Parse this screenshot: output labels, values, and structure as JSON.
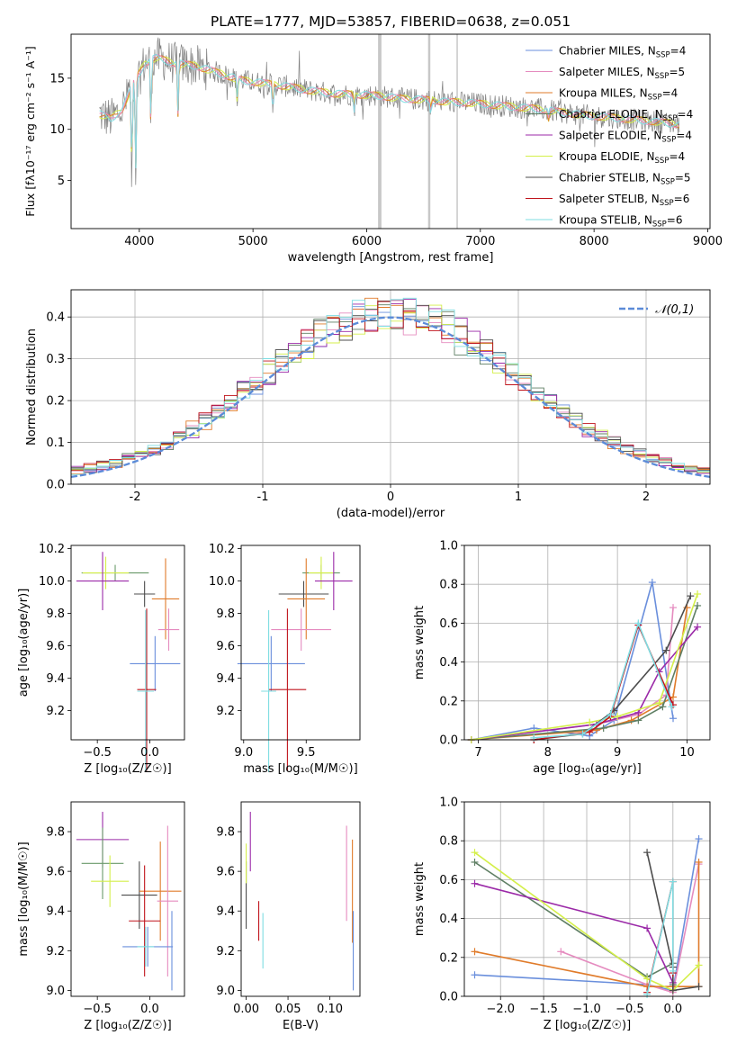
{
  "figure": {
    "title": "PLATE=1777, MJD=53857, FIBERID=0638, z=0.051",
    "legend_entries": [
      {
        "name": "Chabrier MILES",
        "nssp": "4",
        "color": "#6a8fdc"
      },
      {
        "name": "Salpeter MILES",
        "nssp": "5",
        "color": "#e58bbf"
      },
      {
        "name": "Kroupa MILES",
        "nssp": "4",
        "color": "#e07b2a"
      },
      {
        "name": "Chabrier ELODIE",
        "nssp": "4",
        "color": "#5f7f64"
      },
      {
        "name": "Salpeter ELODIE",
        "nssp": "4",
        "color": "#9b2aa8"
      },
      {
        "name": "Kroupa ELODIE",
        "nssp": "4",
        "color": "#d4ef4a"
      },
      {
        "name": "Chabrier STELIB",
        "nssp": "5",
        "color": "#4c4c4c"
      },
      {
        "name": "Salpeter STELIB",
        "nssp": "6",
        "color": "#c0141c"
      },
      {
        "name": "Kroupa STELIB",
        "nssp": "6",
        "color": "#7fdde2"
      }
    ]
  },
  "chart_data": [
    {
      "id": "spectrum",
      "type": "line",
      "xlabel": "wavelength [Angstrom, rest frame]",
      "ylabel": "Flux [fλ10⁻¹⁷ erg cm⁻² s⁻¹ A⁻¹]",
      "xlim": [
        3400,
        9020
      ],
      "ylim": [
        0.3,
        19.3
      ],
      "xticks": [
        4000,
        5000,
        6000,
        7000,
        8000,
        9000
      ],
      "yticks": [
        5,
        10,
        15
      ],
      "data_color": "#808080",
      "model_color": "#7fdde2",
      "continuum": [
        [
          3650,
          11.5
        ],
        [
          3750,
          11.0
        ],
        [
          3850,
          12.0
        ],
        [
          3950,
          14.5
        ],
        [
          4050,
          16.5
        ],
        [
          4150,
          17.0
        ],
        [
          4300,
          16.5
        ],
        [
          4500,
          16.2
        ],
        [
          4700,
          15.5
        ],
        [
          4900,
          14.8
        ],
        [
          5100,
          14.5
        ],
        [
          5300,
          14.2
        ],
        [
          5500,
          13.8
        ],
        [
          5700,
          13.5
        ],
        [
          5900,
          13.4
        ],
        [
          6100,
          13.3
        ],
        [
          6300,
          13.0
        ],
        [
          6500,
          12.9
        ],
        [
          6700,
          12.7
        ],
        [
          6900,
          12.6
        ],
        [
          7100,
          12.4
        ],
        [
          7300,
          12.2
        ],
        [
          7500,
          12.0
        ],
        [
          7700,
          11.7
        ],
        [
          7900,
          11.4
        ],
        [
          8100,
          11.2
        ],
        [
          8300,
          11.0
        ],
        [
          8500,
          10.8
        ],
        [
          8750,
          10.5
        ]
      ],
      "absorption": [
        [
          3934,
          4.0
        ],
        [
          3969,
          4.5
        ],
        [
          4102,
          9.5
        ],
        [
          4340,
          11.0
        ],
        [
          4861,
          12.5
        ],
        [
          5175,
          11.5
        ],
        [
          5890,
          11.8
        ],
        [
          6563,
          11.5
        ],
        [
          7600,
          11.0
        ]
      ],
      "gaps": [
        [
          6100,
          6130
        ],
        [
          6540,
          6560
        ],
        [
          6790,
          6800
        ]
      ]
    },
    {
      "id": "residuals",
      "type": "bar",
      "xlabel": "(data-model)/error",
      "ylabel": "Normed distribution",
      "xlim": [
        -2.5,
        2.5
      ],
      "ylim": [
        0,
        0.465
      ],
      "xticks": [
        -2,
        -1,
        0,
        1,
        2
      ],
      "yticks": [
        0.0,
        0.1,
        0.2,
        0.3,
        0.4
      ],
      "bin_width": 0.1,
      "legend_label": "𝒩(0,1)",
      "reference_color": "#5b8bd8",
      "reference": {
        "mean": 0,
        "sigma": 1
      }
    },
    {
      "id": "age-vs-Z",
      "type": "scatter",
      "xlabel": "Z [log₁₀(Z/Z☉)]",
      "ylabel": "age  [log₁₀(age/yr)]",
      "xlim": [
        -0.75,
        0.33
      ],
      "ylim": [
        9.02,
        10.22
      ],
      "xticks": [
        -0.5,
        0.0
      ],
      "xtick_labels": [
        "−0.5",
        "0.0"
      ],
      "yticks": [
        9.2,
        9.4,
        9.6,
        9.8,
        10.0,
        10.2
      ],
      "errorbars": [
        {
          "x": -0.33,
          "xerr": 0.32,
          "y": 10.05,
          "yerr": 0.05,
          "color": "#6a9a6a"
        },
        {
          "x": -0.42,
          "xerr": 0.22,
          "y": 10.05,
          "yerr": 0.1,
          "color": "#d4ef4a"
        },
        {
          "x": -0.45,
          "xerr": 0.25,
          "y": 10.0,
          "yerr": 0.18,
          "color": "#9b2aa8"
        },
        {
          "x": -0.05,
          "xerr": 0.1,
          "y": 9.92,
          "yerr": 0.08,
          "color": "#4c4c4c"
        },
        {
          "x": 0.15,
          "xerr": 0.13,
          "y": 9.89,
          "yerr": 0.25,
          "color": "#e07b2a"
        },
        {
          "x": 0.18,
          "xerr": 0.1,
          "y": 9.7,
          "yerr": 0.13,
          "color": "#e58bbf"
        },
        {
          "x": 0.05,
          "xerr": 0.24,
          "y": 9.49,
          "yerr": 0.17,
          "color": "#6a8fdc"
        },
        {
          "x": -0.03,
          "xerr": 0.09,
          "y": 9.33,
          "yerr": 0.5,
          "color": "#c0141c"
        },
        {
          "x": -0.04,
          "xerr": 0.08,
          "y": 9.32,
          "yerr": 0.5,
          "color": "#7fdde2"
        }
      ]
    },
    {
      "id": "age-vs-mass",
      "type": "scatter",
      "xlabel": "mass [log₁₀(M/M☉)]",
      "ylabel": "",
      "xlim": [
        8.98,
        9.93
      ],
      "ylim": [
        9.02,
        10.22
      ],
      "xticks": [
        9.0,
        9.5
      ],
      "xtick_labels": [
        "9.0",
        "9.5"
      ],
      "yticks": [
        9.2,
        9.4,
        9.6,
        9.8,
        10.0,
        10.2
      ],
      "errorbars": [
        {
          "x": 9.62,
          "xerr": 0.15,
          "y": 10.05,
          "yerr": 0.05,
          "color": "#6a9a6a"
        },
        {
          "x": 9.62,
          "xerr": 0.1,
          "y": 10.05,
          "yerr": 0.1,
          "color": "#d4ef4a"
        },
        {
          "x": 9.72,
          "xerr": 0.15,
          "y": 10.0,
          "yerr": 0.18,
          "color": "#9b2aa8"
        },
        {
          "x": 9.48,
          "xerr": 0.2,
          "y": 9.92,
          "yerr": 0.08,
          "color": "#4c4c4c"
        },
        {
          "x": 9.5,
          "xerr": 0.15,
          "y": 9.89,
          "yerr": 0.25,
          "color": "#e07b2a"
        },
        {
          "x": 9.46,
          "xerr": 0.24,
          "y": 9.7,
          "yerr": 0.13,
          "color": "#e58bbf"
        },
        {
          "x": 9.22,
          "xerr": 0.27,
          "y": 9.49,
          "yerr": 0.17,
          "color": "#6a8fdc"
        },
        {
          "x": 9.35,
          "xerr": 0.15,
          "y": 9.33,
          "yerr": 0.5,
          "color": "#c0141c"
        },
        {
          "x": 9.2,
          "xerr": 0.06,
          "y": 9.32,
          "yerr": 0.5,
          "color": "#7fdde2"
        }
      ]
    },
    {
      "id": "weight-vs-age",
      "type": "line",
      "xlabel": "age  [log₁₀(age/yr)]",
      "ylabel": "mass weight",
      "xlim": [
        6.8,
        10.33
      ],
      "ylim": [
        0.0,
        1.0
      ],
      "xticks": [
        7,
        8,
        9,
        10
      ],
      "yticks": [
        0.0,
        0.2,
        0.4,
        0.6,
        0.8,
        1.0
      ],
      "series": [
        {
          "color": "#6a8fdc",
          "points": [
            [
              6.9,
              0.0
            ],
            [
              7.8,
              0.06
            ],
            [
              8.6,
              0.02
            ],
            [
              8.95,
              0.1
            ],
            [
              9.5,
              0.81
            ],
            [
              9.8,
              0.11
            ]
          ]
        },
        {
          "color": "#e58bbf",
          "points": [
            [
              6.9,
              0.0
            ],
            [
              8.7,
              0.08
            ],
            [
              9.3,
              0.13
            ],
            [
              9.7,
              0.23
            ],
            [
              9.8,
              0.68
            ]
          ]
        },
        {
          "color": "#e07b2a",
          "points": [
            [
              6.9,
              0.0
            ],
            [
              8.7,
              0.05
            ],
            [
              9.2,
              0.1
            ],
            [
              9.8,
              0.22
            ],
            [
              10.0,
              0.68
            ]
          ]
        },
        {
          "color": "#5f7f64",
          "points": [
            [
              6.9,
              0.0
            ],
            [
              8.8,
              0.06
            ],
            [
              9.3,
              0.1
            ],
            [
              9.65,
              0.17
            ],
            [
              10.15,
              0.69
            ]
          ]
        },
        {
          "color": "#9b2aa8",
          "points": [
            [
              6.9,
              0.0
            ],
            [
              8.7,
              0.08
            ],
            [
              9.3,
              0.14
            ],
            [
              9.6,
              0.35
            ],
            [
              10.15,
              0.58
            ]
          ]
        },
        {
          "color": "#d4ef4a",
          "points": [
            [
              6.9,
              0.0
            ],
            [
              8.6,
              0.09
            ],
            [
              9.0,
              0.12
            ],
            [
              9.6,
              0.19
            ],
            [
              10.15,
              0.75
            ]
          ]
        },
        {
          "color": "#4c4c4c",
          "points": [
            [
              7.8,
              0.0
            ],
            [
              8.5,
              0.03
            ],
            [
              8.95,
              0.15
            ],
            [
              9.7,
              0.46
            ],
            [
              10.05,
              0.74
            ]
          ]
        },
        {
          "color": "#c0141c",
          "points": [
            [
              7.8,
              0.0
            ],
            [
              8.6,
              0.04
            ],
            [
              8.9,
              0.12
            ],
            [
              9.3,
              0.59
            ],
            [
              9.8,
              0.18
            ]
          ]
        },
        {
          "color": "#7fdde2",
          "points": [
            [
              7.8,
              0.01
            ],
            [
              8.5,
              0.03
            ],
            [
              8.9,
              0.13
            ],
            [
              9.3,
              0.6
            ],
            [
              9.78,
              0.17
            ]
          ]
        }
      ]
    },
    {
      "id": "mass-vs-Z",
      "type": "scatter",
      "xlabel": "Z [log₁₀(Z/Z☉)]",
      "ylabel": "mass [log₁₀(M/M☉)]",
      "xlim": [
        -0.75,
        0.33
      ],
      "ylim": [
        8.97,
        9.95
      ],
      "xticks": [
        -0.5,
        0.0
      ],
      "xtick_labels": [
        "−0.5",
        "0.0"
      ],
      "yticks": [
        9.0,
        9.2,
        9.4,
        9.6,
        9.8
      ],
      "errorbars": [
        {
          "x": -0.45,
          "xerr": 0.25,
          "y": 9.76,
          "yerr": 0.14,
          "color": "#9b2aa8"
        },
        {
          "x": -0.45,
          "xerr": 0.2,
          "y": 9.64,
          "yerr": 0.18,
          "color": "#6a9a6a"
        },
        {
          "x": -0.38,
          "xerr": 0.18,
          "y": 9.55,
          "yerr": 0.13,
          "color": "#d4ef4a"
        },
        {
          "x": -0.1,
          "xerr": 0.17,
          "y": 9.48,
          "yerr": 0.17,
          "color": "#4c4c4c"
        },
        {
          "x": 0.1,
          "xerr": 0.2,
          "y": 9.5,
          "yerr": 0.25,
          "color": "#e07b2a"
        },
        {
          "x": 0.17,
          "xerr": 0.1,
          "y": 9.45,
          "yerr": 0.38,
          "color": "#e58bbf"
        },
        {
          "x": -0.05,
          "xerr": 0.15,
          "y": 9.35,
          "yerr": 0.28,
          "color": "#c0141c"
        },
        {
          "x": -0.02,
          "xerr": 0.24,
          "y": 9.22,
          "yerr": 0.1,
          "color": "#6a8fdc"
        },
        {
          "x": -0.04,
          "xerr": 0.08,
          "y": 9.22,
          "yerr": 0.1,
          "color": "#7fdde2"
        },
        {
          "x": 0.21,
          "xerr": 0.0,
          "y": 9.2,
          "yerr": 0.2,
          "color": "#6a8fdc"
        }
      ]
    },
    {
      "id": "mass-vs-ebv",
      "type": "scatter",
      "xlabel": "E(B-V)",
      "ylabel": "",
      "xlim": [
        -0.006,
        0.136
      ],
      "ylim": [
        8.97,
        9.95
      ],
      "xticks": [
        0.0,
        0.05,
        0.1
      ],
      "xtick_labels": [
        "0.00",
        "0.05",
        "0.10"
      ],
      "yticks": [
        9.0,
        9.2,
        9.4,
        9.6,
        9.8
      ],
      "errorbars": [
        {
          "x": 0.0,
          "xerr": 0.0,
          "y": 9.48,
          "yerr": 0.17,
          "color": "#4c4c4c"
        },
        {
          "x": 0.0,
          "xerr": 0.0,
          "y": 9.64,
          "yerr": 0.1,
          "color": "#d4ef4a"
        },
        {
          "x": 0.005,
          "xerr": 0.0,
          "y": 9.75,
          "yerr": 0.15,
          "color": "#9b2aa8"
        },
        {
          "x": 0.015,
          "xerr": 0.0,
          "y": 9.35,
          "yerr": 0.1,
          "color": "#c0141c"
        },
        {
          "x": 0.02,
          "xerr": 0.0,
          "y": 9.25,
          "yerr": 0.14,
          "color": "#7fdde2"
        },
        {
          "x": 0.12,
          "xerr": 0.0,
          "y": 9.59,
          "yerr": 0.24,
          "color": "#e58bbf"
        },
        {
          "x": 0.127,
          "xerr": 0.0,
          "y": 9.5,
          "yerr": 0.26,
          "color": "#e07b2a"
        },
        {
          "x": 0.128,
          "xerr": 0.0,
          "y": 9.2,
          "yerr": 0.2,
          "color": "#6a8fdc"
        }
      ]
    },
    {
      "id": "weight-vs-Z",
      "type": "line",
      "xlabel": "Z [log₁₀(Z/Z☉)]",
      "ylabel": "mass weight",
      "xlim": [
        -2.42,
        0.43
      ],
      "ylim": [
        0.0,
        1.0
      ],
      "xticks": [
        -2.0,
        -1.5,
        -1.0,
        -0.5,
        0.0
      ],
      "xtick_labels": [
        "−2.0",
        "−1.5",
        "−1.0",
        "−0.5",
        "0.0"
      ],
      "yticks": [
        0.0,
        0.2,
        0.4,
        0.6,
        0.8,
        1.0
      ],
      "series": [
        {
          "color": "#6a8fdc",
          "points": [
            [
              -2.3,
              0.11
            ],
            [
              -0.3,
              0.06
            ],
            [
              0.0,
              0.03
            ],
            [
              0.3,
              0.81
            ]
          ]
        },
        {
          "color": "#e58bbf",
          "points": [
            [
              -1.3,
              0.23
            ],
            [
              -0.3,
              0.06
            ],
            [
              0.0,
              0.02
            ],
            [
              0.3,
              0.68
            ]
          ]
        },
        {
          "color": "#e07b2a",
          "points": [
            [
              -2.3,
              0.23
            ],
            [
              -0.3,
              0.05
            ],
            [
              0.3,
              0.05
            ],
            [
              0.3,
              0.69
            ]
          ]
        },
        {
          "color": "#5f7f64",
          "points": [
            [
              -2.3,
              0.69
            ],
            [
              -0.3,
              0.1
            ],
            [
              0.0,
              0.17
            ],
            [
              0.0,
              0.06
            ]
          ]
        },
        {
          "color": "#9b2aa8",
          "points": [
            [
              -2.3,
              0.58
            ],
            [
              -0.3,
              0.35
            ],
            [
              0.0,
              0.07
            ]
          ]
        },
        {
          "color": "#d4ef4a",
          "points": [
            [
              -2.3,
              0.74
            ],
            [
              -0.3,
              0.09
            ],
            [
              0.0,
              0.03
            ],
            [
              0.3,
              0.16
            ]
          ]
        },
        {
          "color": "#4c4c4c",
          "points": [
            [
              -0.3,
              0.74
            ],
            [
              0.0,
              0.15
            ],
            [
              0.0,
              0.03
            ],
            [
              0.3,
              0.05
            ]
          ]
        },
        {
          "color": "#c0141c",
          "points": [
            [
              -0.3,
              0.02
            ],
            [
              0.0,
              0.59
            ],
            [
              0.0,
              0.12
            ]
          ]
        },
        {
          "color": "#7fdde2",
          "points": [
            [
              -0.3,
              0.01
            ],
            [
              0.0,
              0.59
            ],
            [
              0.0,
              0.13
            ]
          ]
        }
      ]
    }
  ]
}
